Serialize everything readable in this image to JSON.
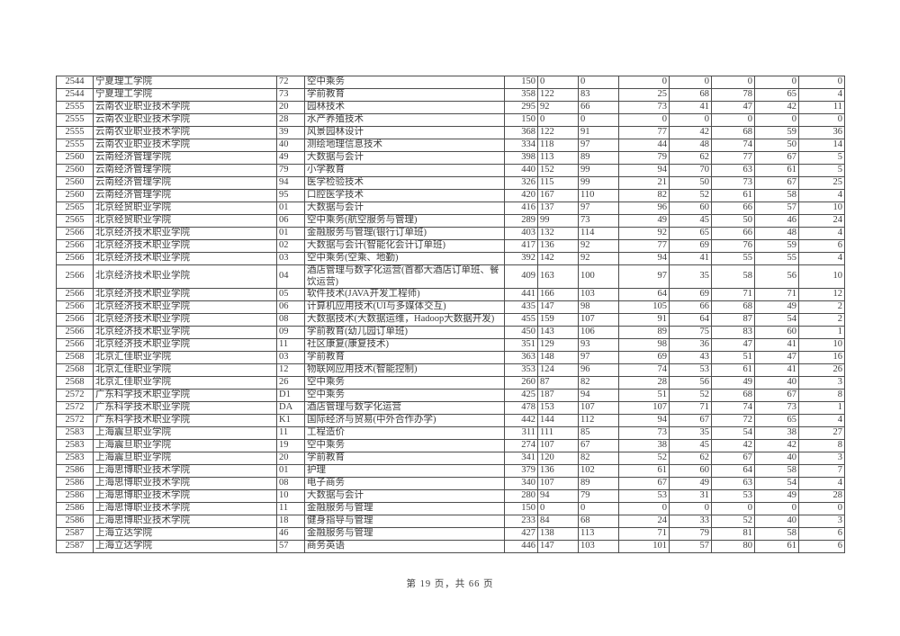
{
  "page": {
    "footer": "第 19 页，共 66 页"
  },
  "table": {
    "rows": [
      {
        "code": "2544",
        "college": "宁夏理工学院",
        "major_code": "72",
        "major": "空中乘务",
        "values": [
          "150",
          "0",
          "0",
          "0",
          "0",
          "0",
          "0",
          "0"
        ]
      },
      {
        "code": "2544",
        "college": "宁夏理工学院",
        "major_code": "73",
        "major": "学前教育",
        "values": [
          "358",
          "122",
          "83",
          "25",
          "68",
          "78",
          "65",
          "4"
        ]
      },
      {
        "code": "2555",
        "college": "云南农业职业技术学院",
        "major_code": "20",
        "major": "园林技术",
        "values": [
          "295",
          "92",
          "66",
          "73",
          "41",
          "47",
          "42",
          "11"
        ]
      },
      {
        "code": "2555",
        "college": "云南农业职业技术学院",
        "major_code": "28",
        "major": "水产养殖技术",
        "values": [
          "150",
          "0",
          "0",
          "0",
          "0",
          "0",
          "0",
          "0"
        ]
      },
      {
        "code": "2555",
        "college": "云南农业职业技术学院",
        "major_code": "39",
        "major": "风景园林设计",
        "values": [
          "368",
          "122",
          "91",
          "77",
          "42",
          "68",
          "59",
          "36"
        ]
      },
      {
        "code": "2555",
        "college": "云南农业职业技术学院",
        "major_code": "40",
        "major": "测绘地理信息技术",
        "values": [
          "334",
          "118",
          "97",
          "44",
          "48",
          "74",
          "50",
          "14"
        ]
      },
      {
        "code": "2560",
        "college": "云南经济管理学院",
        "major_code": "49",
        "major": "大数据与会计",
        "values": [
          "398",
          "113",
          "89",
          "79",
          "62",
          "77",
          "67",
          "5"
        ]
      },
      {
        "code": "2560",
        "college": "云南经济管理学院",
        "major_code": "79",
        "major": "小学教育",
        "values": [
          "440",
          "152",
          "99",
          "94",
          "70",
          "63",
          "61",
          "5"
        ]
      },
      {
        "code": "2560",
        "college": "云南经济管理学院",
        "major_code": "94",
        "major": "医学检验技术",
        "values": [
          "326",
          "115",
          "99",
          "21",
          "50",
          "73",
          "67",
          "25"
        ]
      },
      {
        "code": "2560",
        "college": "云南经济管理学院",
        "major_code": "95",
        "major": "口腔医学技术",
        "values": [
          "420",
          "167",
          "110",
          "82",
          "52",
          "61",
          "58",
          "4"
        ]
      },
      {
        "code": "2565",
        "college": "北京经贸职业学院",
        "major_code": "01",
        "major": "大数据与会计",
        "values": [
          "416",
          "137",
          "97",
          "96",
          "60",
          "66",
          "57",
          "10"
        ]
      },
      {
        "code": "2565",
        "college": "北京经贸职业学院",
        "major_code": "06",
        "major": "空中乘务(航空服务与管理)",
        "values": [
          "289",
          "99",
          "73",
          "49",
          "45",
          "50",
          "46",
          "24"
        ]
      },
      {
        "code": "2566",
        "college": "北京经济技术职业学院",
        "major_code": "01",
        "major": "金融服务与管理(银行订单班)",
        "values": [
          "403",
          "132",
          "114",
          "92",
          "65",
          "66",
          "48",
          "4"
        ]
      },
      {
        "code": "2566",
        "college": "北京经济技术职业学院",
        "major_code": "02",
        "major": "大数据与会计(智能化会计订单班)",
        "values": [
          "417",
          "136",
          "92",
          "77",
          "69",
          "76",
          "59",
          "6"
        ]
      },
      {
        "code": "2566",
        "college": "北京经济技术职业学院",
        "major_code": "03",
        "major": "空中乘务(空乘、地勤)",
        "values": [
          "392",
          "142",
          "92",
          "94",
          "41",
          "55",
          "55",
          "4"
        ]
      },
      {
        "code": "2566",
        "college": "北京经济技术职业学院",
        "major_code": "04",
        "major": "酒店管理与数字化运营(首都大酒店订单班、餐饮运营)",
        "values": [
          "409",
          "163",
          "100",
          "97",
          "35",
          "58",
          "56",
          "10"
        ]
      },
      {
        "code": "2566",
        "college": "北京经济技术职业学院",
        "major_code": "05",
        "major": "软件技术(JAVA开发工程师)",
        "values": [
          "441",
          "166",
          "103",
          "64",
          "69",
          "71",
          "71",
          "12"
        ]
      },
      {
        "code": "2566",
        "college": "北京经济技术职业学院",
        "major_code": "06",
        "major": "计算机应用技术(UI与多媒体交互)",
        "values": [
          "435",
          "147",
          "98",
          "105",
          "66",
          "68",
          "49",
          "2"
        ]
      },
      {
        "code": "2566",
        "college": "北京经济技术职业学院",
        "major_code": "08",
        "major": "大数据技术(大数据运维，Hadoop大数据开发)",
        "values": [
          "455",
          "159",
          "107",
          "91",
          "64",
          "87",
          "54",
          "2"
        ]
      },
      {
        "code": "2566",
        "college": "北京经济技术职业学院",
        "major_code": "09",
        "major": "学前教育(幼儿园订单班)",
        "values": [
          "450",
          "143",
          "106",
          "89",
          "75",
          "83",
          "60",
          "1"
        ]
      },
      {
        "code": "2566",
        "college": "北京经济技术职业学院",
        "major_code": "11",
        "major": "社区康复(康复技术)",
        "values": [
          "351",
          "129",
          "93",
          "98",
          "36",
          "47",
          "41",
          "10"
        ]
      },
      {
        "code": "2568",
        "college": "北京汇佳职业学院",
        "major_code": "03",
        "major": "学前教育",
        "values": [
          "363",
          "148",
          "97",
          "69",
          "43",
          "51",
          "47",
          "16"
        ]
      },
      {
        "code": "2568",
        "college": "北京汇佳职业学院",
        "major_code": "12",
        "major": "物联网应用技术(智能控制)",
        "values": [
          "353",
          "124",
          "96",
          "74",
          "53",
          "61",
          "41",
          "26"
        ]
      },
      {
        "code": "2568",
        "college": "北京汇佳职业学院",
        "major_code": "26",
        "major": "空中乘务",
        "values": [
          "260",
          "87",
          "82",
          "28",
          "56",
          "49",
          "40",
          "3"
        ]
      },
      {
        "code": "2572",
        "college": "广东科学技术职业学院",
        "major_code": "D1",
        "major": "空中乘务",
        "values": [
          "425",
          "187",
          "94",
          "51",
          "52",
          "68",
          "67",
          "8"
        ]
      },
      {
        "code": "2572",
        "college": "广东科学技术职业学院",
        "major_code": "DA",
        "major": "酒店管理与数字化运营",
        "values": [
          "478",
          "153",
          "107",
          "107",
          "71",
          "74",
          "73",
          "1"
        ]
      },
      {
        "code": "2572",
        "college": "广东科学技术职业学院",
        "major_code": "K1",
        "major": "国际经济与贸易(中外合作办学)",
        "values": [
          "442",
          "144",
          "112",
          "94",
          "67",
          "72",
          "65",
          "4"
        ]
      },
      {
        "code": "2583",
        "college": "上海震旦职业学院",
        "major_code": "11",
        "major": "工程造价",
        "values": [
          "311",
          "111",
          "85",
          "73",
          "35",
          "54",
          "38",
          "27"
        ]
      },
      {
        "code": "2583",
        "college": "上海震旦职业学院",
        "major_code": "19",
        "major": "空中乘务",
        "values": [
          "274",
          "107",
          "67",
          "38",
          "45",
          "42",
          "42",
          "8"
        ]
      },
      {
        "code": "2583",
        "college": "上海震旦职业学院",
        "major_code": "20",
        "major": "学前教育",
        "values": [
          "341",
          "120",
          "82",
          "52",
          "62",
          "67",
          "40",
          "3"
        ]
      },
      {
        "code": "2586",
        "college": "上海思博职业技术学院",
        "major_code": "01",
        "major": "护理",
        "values": [
          "379",
          "136",
          "102",
          "61",
          "60",
          "64",
          "58",
          "7"
        ]
      },
      {
        "code": "2586",
        "college": "上海思博职业技术学院",
        "major_code": "08",
        "major": "电子商务",
        "values": [
          "340",
          "107",
          "89",
          "67",
          "49",
          "63",
          "54",
          "4"
        ]
      },
      {
        "code": "2586",
        "college": "上海思博职业技术学院",
        "major_code": "10",
        "major": "大数据与会计",
        "values": [
          "280",
          "94",
          "79",
          "53",
          "31",
          "53",
          "49",
          "28"
        ]
      },
      {
        "code": "2586",
        "college": "上海思博职业技术学院",
        "major_code": "11",
        "major": "金融服务与管理",
        "values": [
          "150",
          "0",
          "0",
          "0",
          "0",
          "0",
          "0",
          "0"
        ]
      },
      {
        "code": "2586",
        "college": "上海思博职业技术学院",
        "major_code": "18",
        "major": "健身指导与管理",
        "values": [
          "233",
          "84",
          "68",
          "24",
          "33",
          "52",
          "40",
          "3"
        ]
      },
      {
        "code": "2587",
        "college": "上海立达学院",
        "major_code": "46",
        "major": "金融服务与管理",
        "values": [
          "427",
          "138",
          "113",
          "71",
          "79",
          "81",
          "58",
          "6"
        ]
      },
      {
        "code": "2587",
        "college": "上海立达学院",
        "major_code": "57",
        "major": "商务英语",
        "values": [
          "446",
          "147",
          "103",
          "101",
          "57",
          "80",
          "61",
          "6"
        ]
      }
    ]
  }
}
